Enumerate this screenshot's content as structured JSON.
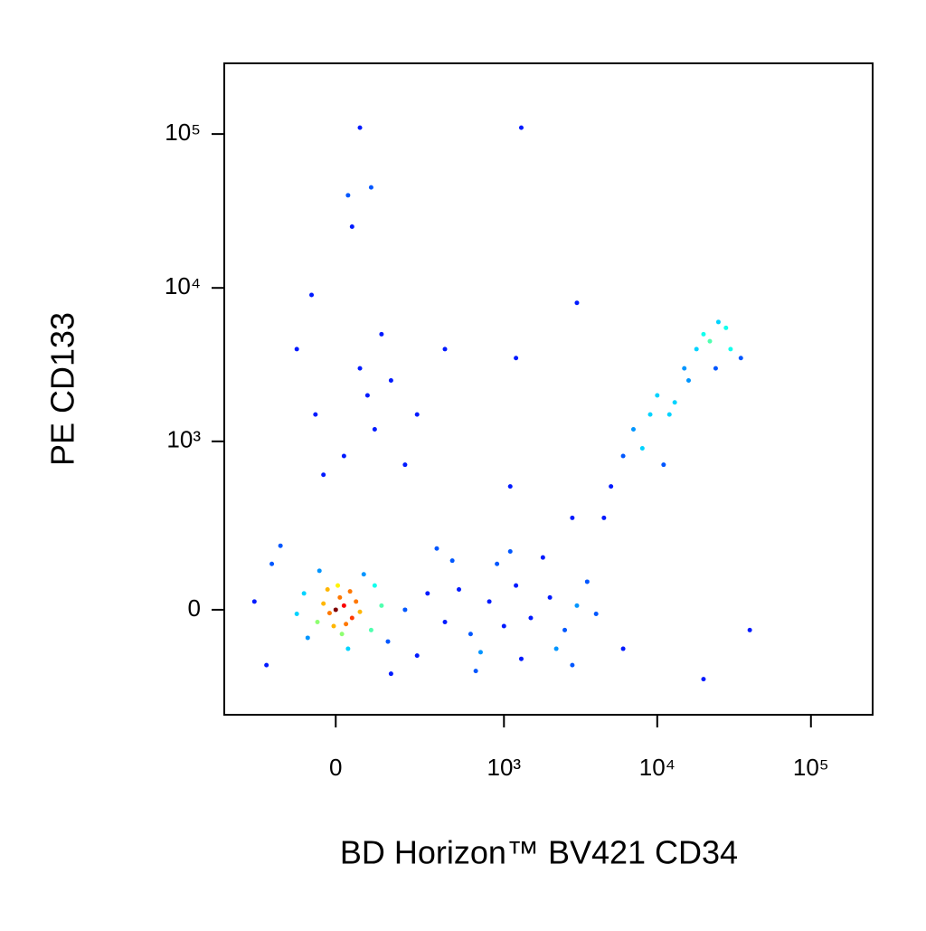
{
  "chart_data": {
    "type": "scatter",
    "xlabel": "BD Horizon™ BV421 CD34",
    "ylabel": "PE CD133",
    "xscale": "biexponential",
    "yscale": "biexponential",
    "xlim": [
      -415,
      252000
    ],
    "ylim": [
      -373,
      288000
    ],
    "xticks": [
      0,
      {
        "value": 1000,
        "label": "10³"
      },
      {
        "value": 10000,
        "label": "10⁴"
      },
      {
        "value": 100000,
        "label": "10⁵"
      }
    ],
    "yticks": [
      0,
      {
        "value": 1000,
        "label": "10³"
      },
      {
        "value": 10000,
        "label": "10⁴"
      },
      {
        "value": 100000,
        "label": "10⁵"
      }
    ],
    "x": [
      0,
      20,
      -15,
      40,
      10,
      -30,
      25,
      50,
      -5,
      35,
      5,
      -45,
      60,
      15,
      -20,
      -80,
      90,
      100,
      -70,
      120,
      -100,
      70,
      30,
      -40,
      140,
      200,
      300,
      400,
      500,
      600,
      800,
      1000,
      1200,
      1500,
      2000,
      2500,
      3000,
      3500,
      250,
      450,
      700,
      900,
      1300,
      1800,
      2200,
      -200,
      -180,
      -150,
      150,
      350,
      650,
      1100,
      2800,
      -250,
      4000,
      20,
      -50,
      60,
      100,
      -30,
      80,
      120,
      -60,
      30,
      90,
      60,
      200,
      150,
      250,
      -100,
      40,
      5000,
      6000,
      7000,
      8000,
      9000,
      10000,
      12000,
      15000,
      18000,
      20000,
      22000,
      25000,
      28000,
      30000,
      16000,
      35000,
      11000,
      13000,
      4500,
      24000,
      3000,
      1300,
      1100,
      6000,
      20000,
      40000,
      400,
      1200,
      2800
    ],
    "values": [
      0,
      10,
      -8,
      -20,
      30,
      15,
      -35,
      20,
      -40,
      45,
      60,
      -30,
      -5,
      -60,
      50,
      40,
      -50,
      60,
      -70,
      10,
      -10,
      90,
      -100,
      100,
      -80,
      0,
      40,
      -30,
      50,
      -60,
      20,
      -40,
      60,
      -20,
      30,
      -50,
      10,
      70,
      -120,
      130,
      -110,
      120,
      -130,
      140,
      -100,
      -150,
      120,
      180,
      -180,
      170,
      -170,
      160,
      -150,
      20,
      -10,
      800,
      1500,
      3000,
      1200,
      600,
      2000,
      5000,
      9000,
      40000,
      45000,
      110000,
      700,
      2500,
      1500,
      4000,
      25000,
      500,
      800,
      1200,
      900,
      1500,
      2000,
      1500,
      3000,
      4000,
      5000,
      4500,
      6000,
      5500,
      4000,
      2500,
      3500,
      700,
      1800,
      300,
      3000,
      8000,
      110000,
      500,
      -100,
      -200,
      -50,
      4000,
      3500,
      300
    ]
  }
}
